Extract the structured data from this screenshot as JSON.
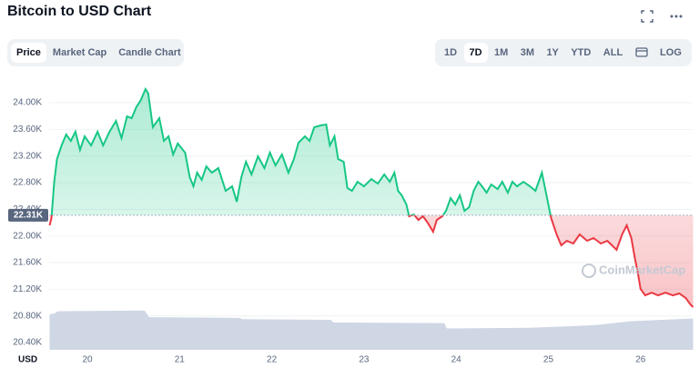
{
  "chart_data": {
    "type": "line",
    "title": "Bitcoin to USD Chart",
    "y_label": "USD",
    "x": [
      19.59,
      19.61,
      19.64,
      19.67,
      19.72,
      19.77,
      19.82,
      19.87,
      19.92,
      19.97,
      20.04,
      20.11,
      20.17,
      20.24,
      20.31,
      20.37,
      20.43,
      20.48,
      20.53,
      20.58,
      20.63,
      20.66,
      20.71,
      20.78,
      20.83,
      20.88,
      20.93,
      20.98,
      21.06,
      21.11,
      21.15,
      21.19,
      21.24,
      21.29,
      21.35,
      21.42,
      21.5,
      21.57,
      21.62,
      21.67,
      21.72,
      21.78,
      21.85,
      21.92,
      21.98,
      22.04,
      22.11,
      22.18,
      22.24,
      22.29,
      22.36,
      22.41,
      22.46,
      22.53,
      22.59,
      22.63,
      22.68,
      22.72,
      22.78,
      22.82,
      22.87,
      22.93,
      23.0,
      23.08,
      23.15,
      23.22,
      23.28,
      23.33,
      23.37,
      23.41,
      23.46,
      23.49,
      23.54,
      23.59,
      23.64,
      23.69,
      23.75,
      23.79,
      23.85,
      23.89,
      23.94,
      23.99,
      24.04,
      24.09,
      24.14,
      24.19,
      24.24,
      24.28,
      24.33,
      24.38,
      24.45,
      24.5,
      24.56,
      24.61,
      24.66,
      24.73,
      24.8,
      24.86,
      24.93,
      24.96,
      25.0,
      25.03,
      25.09,
      25.14,
      25.2,
      25.27,
      25.34,
      25.42,
      25.49,
      25.57,
      25.64,
      25.69,
      25.74,
      25.8,
      25.85,
      25.9,
      25.94,
      25.97,
      26.0,
      26.05,
      26.12,
      26.19,
      26.27,
      26.35,
      26.42,
      26.49,
      26.54,
      26.57
    ],
    "values": [
      22159,
      22268,
      22813,
      23154,
      23359,
      23523,
      23427,
      23564,
      23291,
      23495,
      23359,
      23564,
      23359,
      23564,
      23727,
      23468,
      23795,
      23768,
      23932,
      24041,
      24205,
      24137,
      23632,
      23768,
      23427,
      23495,
      23223,
      23387,
      23250,
      22882,
      22745,
      22950,
      22841,
      23045,
      22950,
      23018,
      22677,
      22745,
      22513,
      22882,
      23114,
      22923,
      23195,
      23018,
      23250,
      23059,
      23223,
      22950,
      23154,
      23400,
      23495,
      23427,
      23632,
      23659,
      23673,
      23359,
      23495,
      23154,
      23114,
      22718,
      22677,
      22813,
      22745,
      22854,
      22786,
      22923,
      22813,
      22950,
      22677,
      22609,
      22472,
      22295,
      22322,
      22240,
      22295,
      22200,
      22063,
      22240,
      22295,
      22377,
      22568,
      22472,
      22609,
      22377,
      22431,
      22677,
      22813,
      22745,
      22650,
      22772,
      22704,
      22813,
      22650,
      22813,
      22745,
      22813,
      22745,
      22677,
      22950,
      22745,
      22472,
      22268,
      22022,
      21859,
      21927,
      21886,
      22022,
      21927,
      21968,
      21886,
      21927,
      21859,
      21791,
      22022,
      22159,
      21968,
      21654,
      21449,
      21204,
      21108,
      21149,
      21108,
      21149,
      21108,
      21136,
      21068,
      20972,
      20931
    ],
    "color_up": "#16c784",
    "color_down": "#ea3943",
    "reference": {
      "value": 22310,
      "label": "22.31K"
    },
    "volume": {
      "x": [
        19.59,
        19.65,
        19.68,
        20.62,
        20.67,
        21.65,
        21.68,
        22.64,
        22.67,
        23.87,
        23.9,
        24.8,
        25.5,
        25.9,
        26.57
      ],
      "values": [
        20820,
        20840,
        20870,
        20880,
        20780,
        20770,
        20750,
        20740,
        20700,
        20690,
        20610,
        20620,
        20660,
        20720,
        20760
      ],
      "color": "#cfd6e4"
    },
    "xlim": [
      19.585,
      26.555
    ],
    "xticks": [
      20,
      21,
      22,
      23,
      24,
      25,
      26
    ],
    "ylim": [
      20290,
      24246
    ],
    "yticks": [
      {
        "value": 20400,
        "label": "20.40K"
      },
      {
        "value": 20800,
        "label": "20.80K"
      },
      {
        "value": 21200,
        "label": "21.20K"
      },
      {
        "value": 21600,
        "label": "21.60K"
      },
      {
        "value": 22000,
        "label": "22.00K"
      },
      {
        "value": 22400,
        "label": "22.40K"
      },
      {
        "value": 22800,
        "label": "22.80K"
      },
      {
        "value": 23200,
        "label": "23.20K"
      },
      {
        "value": 23600,
        "label": "23.60K"
      },
      {
        "value": 24000,
        "label": "24.00K"
      }
    ],
    "grid": true,
    "watermark": "CoinMarketCap"
  },
  "ui": {
    "tabs": [
      "Price",
      "Market Cap",
      "Candle Chart"
    ],
    "active_tab": 0,
    "ranges": [
      "1D",
      "7D",
      "1M",
      "3M",
      "1Y",
      "YTD",
      "ALL"
    ],
    "active_range": 1,
    "log": "LOG"
  }
}
